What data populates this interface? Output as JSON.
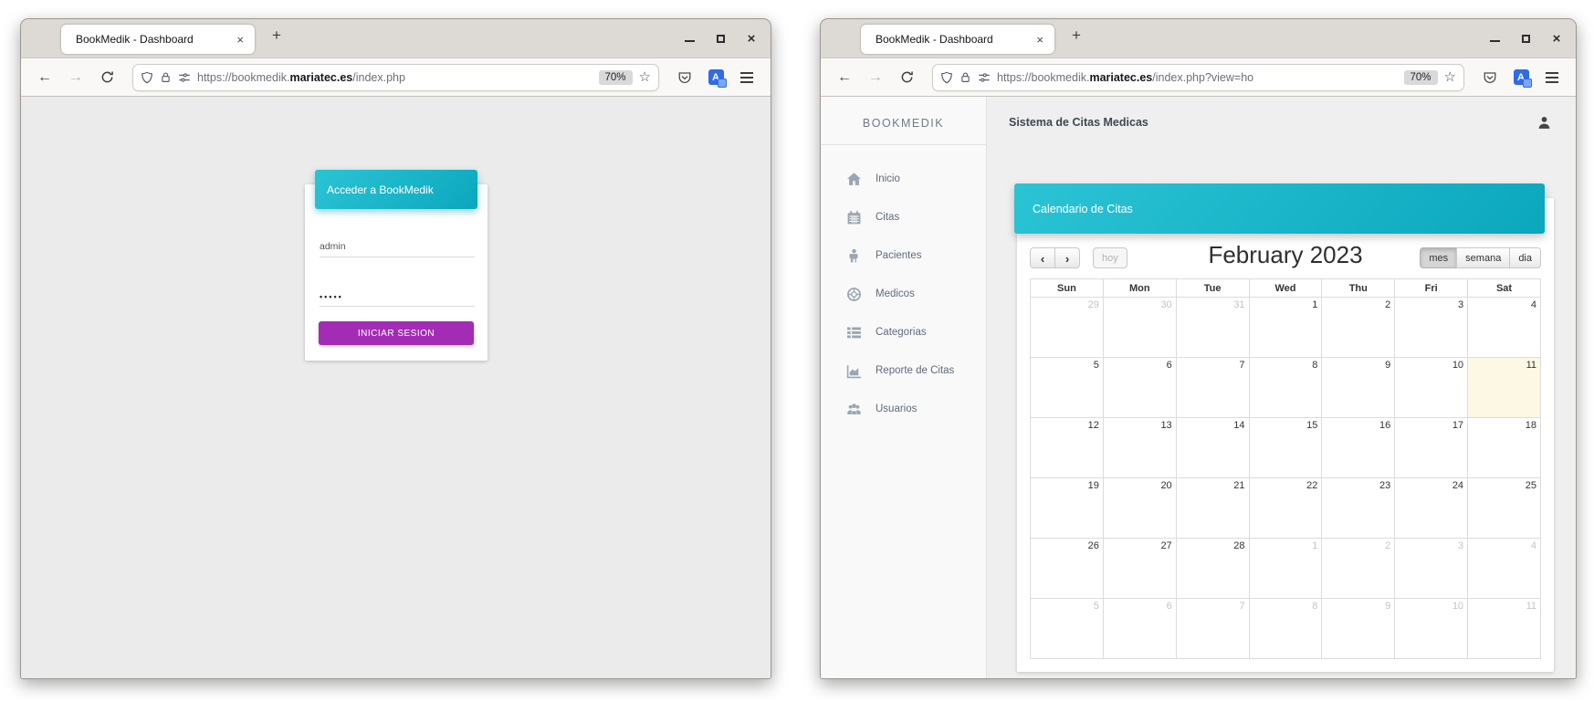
{
  "browser": {
    "tab_title": "BookMedik - Dashboard",
    "zoom_badge": "70%",
    "url_left": {
      "prefix": "https://bookmedik.",
      "domain": "mariatec.es",
      "suffix": "/index.php"
    },
    "url_right": {
      "prefix": "https://bookmedik.",
      "domain": "mariatec.es",
      "suffix": "/index.php?view=ho"
    }
  },
  "glyphs": {
    "close": "×",
    "new_tab": "+",
    "back": "←",
    "forward": "→",
    "star": "☆",
    "prev": "‹",
    "next": "›"
  },
  "login": {
    "panel_title": "Acceder a BookMedik",
    "username_value": "admin",
    "password_value": "•••••",
    "submit_label": "INICIAR SESION"
  },
  "dashboard": {
    "brand": "BOOKMEDIK",
    "header_title": "Sistema de Citas Medicas",
    "nav": [
      {
        "label": "Inicio",
        "icon": "home-icon"
      },
      {
        "label": "Citas",
        "icon": "calendar-icon"
      },
      {
        "label": "Pacientes",
        "icon": "patient-icon"
      },
      {
        "label": "Medicos",
        "icon": "life-ring-icon"
      },
      {
        "label": "Categorias",
        "icon": "list-icon"
      },
      {
        "label": "Reporte de Citas",
        "icon": "area-chart-icon"
      },
      {
        "label": "Usuarios",
        "icon": "users-icon"
      }
    ],
    "calendar": {
      "banner_title": "Calendario de Citas",
      "today_button": "hoy",
      "month_title": "February 2023",
      "views": [
        "mes",
        "semana",
        "dia"
      ],
      "active_view": "mes",
      "day_headers": [
        "Sun",
        "Mon",
        "Tue",
        "Wed",
        "Thu",
        "Fri",
        "Sat"
      ],
      "weeks": [
        [
          {
            "d": "29",
            "muted": true
          },
          {
            "d": "30",
            "muted": true
          },
          {
            "d": "31",
            "muted": true
          },
          {
            "d": "1"
          },
          {
            "d": "2"
          },
          {
            "d": "3"
          },
          {
            "d": "4"
          }
        ],
        [
          {
            "d": "5"
          },
          {
            "d": "6"
          },
          {
            "d": "7"
          },
          {
            "d": "8"
          },
          {
            "d": "9"
          },
          {
            "d": "10"
          },
          {
            "d": "11",
            "today": true
          }
        ],
        [
          {
            "d": "12"
          },
          {
            "d": "13"
          },
          {
            "d": "14"
          },
          {
            "d": "15"
          },
          {
            "d": "16"
          },
          {
            "d": "17"
          },
          {
            "d": "18"
          }
        ],
        [
          {
            "d": "19"
          },
          {
            "d": "20"
          },
          {
            "d": "21"
          },
          {
            "d": "22"
          },
          {
            "d": "23"
          },
          {
            "d": "24"
          },
          {
            "d": "25"
          }
        ],
        [
          {
            "d": "26"
          },
          {
            "d": "27"
          },
          {
            "d": "28"
          },
          {
            "d": "1",
            "muted": true
          },
          {
            "d": "2",
            "muted": true
          },
          {
            "d": "3",
            "muted": true
          },
          {
            "d": "4",
            "muted": true
          }
        ],
        [
          {
            "d": "5",
            "muted": true
          },
          {
            "d": "6",
            "muted": true
          },
          {
            "d": "7",
            "muted": true
          },
          {
            "d": "8",
            "muted": true
          },
          {
            "d": "9",
            "muted": true
          },
          {
            "d": "10",
            "muted": true
          },
          {
            "d": "11",
            "muted": true
          }
        ]
      ]
    }
  },
  "colors": {
    "teal_start": "#2bc4d5",
    "teal_end": "#0ba7bd",
    "purple": "#a32cb5",
    "today_bg": "#fcf8e3"
  }
}
